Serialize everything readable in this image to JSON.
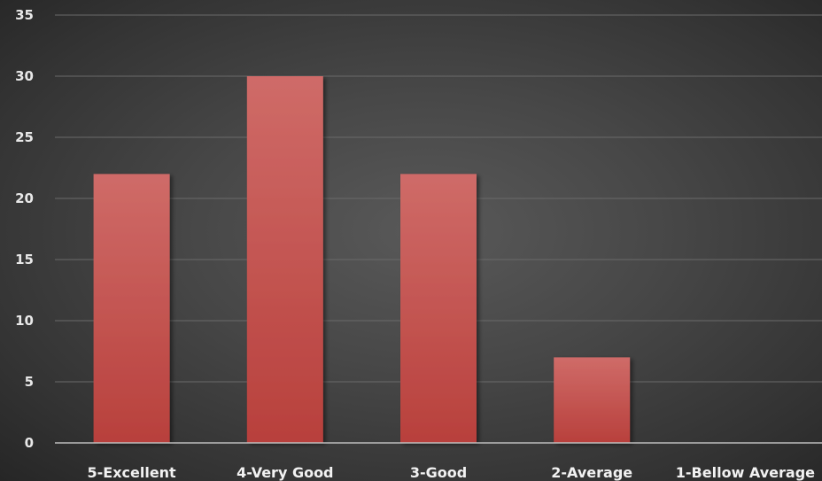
{
  "chart_data": {
    "type": "bar",
    "categories": [
      "5-Excellent",
      "4-Very Good",
      "3-Good",
      "2-Average",
      "1-Bellow Average"
    ],
    "values": [
      22,
      30,
      22,
      7,
      0
    ],
    "title": "",
    "xlabel": "",
    "ylabel": "",
    "ylim": [
      0,
      35
    ],
    "yticks": [
      0,
      5,
      10,
      15,
      20,
      25,
      30,
      35
    ],
    "grid": true,
    "legend": "none",
    "bar_color": "#c0504d"
  }
}
